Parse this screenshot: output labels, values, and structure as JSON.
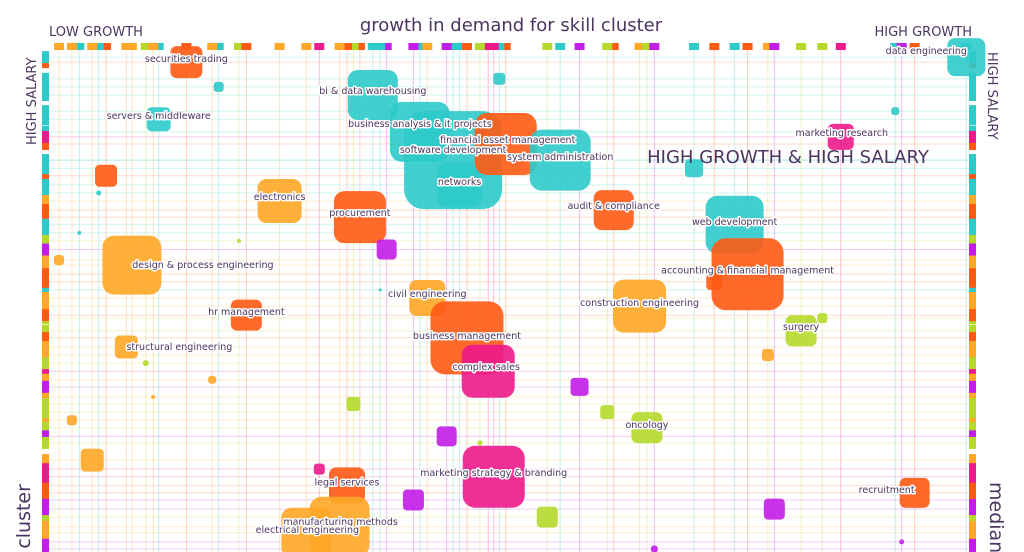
{
  "chart_data": {
    "type": "scatter",
    "title": "growth in demand for skill cluster",
    "x_axis": {
      "left_label": "LOW GROWTH",
      "right_label": "HIGH GROWTH",
      "range": [
        0,
        100
      ]
    },
    "y_axis": {
      "top_label_left": "HIGH SALARY",
      "top_label_right": "HIGH SALARY",
      "bottom_left_partial": "l cluster",
      "bottom_right_partial": "median",
      "range": [
        0,
        100
      ]
    },
    "quadrant_label": "HIGH GROWTH & HIGH SALARY",
    "grid": true,
    "colors": {
      "teal": "#2ecaca",
      "red": "#ff5a14",
      "amber": "#ffa726",
      "magenta": "#ec1a8c",
      "purple": "#c21de8",
      "lime": "#b5d92b",
      "text": "#4b3560"
    },
    "points": [
      {
        "label": "securities trading",
        "x": 15.1,
        "y": 97.0,
        "size": 32,
        "color": "red"
      },
      {
        "label": "",
        "x": 18.6,
        "y": 92.1,
        "size": 10,
        "color": "teal"
      },
      {
        "label": "servers & middleware",
        "x": 12.1,
        "y": 85.7,
        "size": 24,
        "color": "teal"
      },
      {
        "label": "",
        "x": 6.4,
        "y": 74.5,
        "size": 22,
        "color": "red"
      },
      {
        "label": "",
        "x": 5.6,
        "y": 71.1,
        "size": 5,
        "color": "teal"
      },
      {
        "label": "",
        "x": 3.5,
        "y": 63.2,
        "size": 4,
        "color": "teal"
      },
      {
        "label": "electronics",
        "x": 25.2,
        "y": 69.5,
        "size": 44,
        "color": "amber"
      },
      {
        "label": "",
        "x": 20.8,
        "y": 61.6,
        "size": 4,
        "color": "lime"
      },
      {
        "label": "",
        "x": 1.3,
        "y": 57.8,
        "size": 10,
        "color": "amber"
      },
      {
        "label": "design & process engineering",
        "x": 9.2,
        "y": 56.8,
        "size": 59,
        "color": "amber"
      },
      {
        "label": "bi & data warehousing",
        "x": 35.3,
        "y": 90.5,
        "size": 50,
        "color": "teal"
      },
      {
        "label": "business analysis & it projects",
        "x": 40.4,
        "y": 83.2,
        "size": 60,
        "color": "teal"
      },
      {
        "label": "software development",
        "x": 44.0,
        "y": 77.6,
        "size": 98,
        "color": "teal"
      },
      {
        "label": "networks",
        "x": 44.7,
        "y": 72.7,
        "size": 45,
        "color": "teal"
      },
      {
        "label": "financial asset management",
        "x": 49.7,
        "y": 80.8,
        "size": 62,
        "color": "red"
      },
      {
        "label": "system administration",
        "x": 55.6,
        "y": 77.6,
        "size": 61,
        "color": "teal"
      },
      {
        "label": "",
        "x": 49.0,
        "y": 93.7,
        "size": 12,
        "color": "teal"
      },
      {
        "label": "procurement",
        "x": 33.9,
        "y": 66.3,
        "size": 52,
        "color": "red"
      },
      {
        "label": "",
        "x": 36.8,
        "y": 59.9,
        "size": 20,
        "color": "purple"
      },
      {
        "label": "",
        "x": 36.1,
        "y": 51.9,
        "size": 3,
        "color": "teal"
      },
      {
        "label": "audit & compliance",
        "x": 61.4,
        "y": 67.7,
        "size": 40,
        "color": "red"
      },
      {
        "label": "",
        "x": 70.1,
        "y": 76.0,
        "size": 18,
        "color": "teal"
      },
      {
        "label": "marketing research",
        "x": 86.0,
        "y": 82.2,
        "size": 26,
        "color": "magenta"
      },
      {
        "label": "",
        "x": 91.9,
        "y": 87.3,
        "size": 8,
        "color": "teal"
      },
      {
        "label": "data engineering",
        "x": 99.6,
        "y": 98.0,
        "size": 38,
        "color": "teal"
      },
      {
        "label": "web development",
        "x": 74.5,
        "y": 64.8,
        "size": 58,
        "color": "teal"
      },
      {
        "label": "accounting & financial management",
        "x": 75.9,
        "y": 55.0,
        "size": 72,
        "color": "red"
      },
      {
        "label": "",
        "x": 72.3,
        "y": 53.5,
        "size": 16,
        "color": "red"
      },
      {
        "label": "construction engineering",
        "x": 64.2,
        "y": 48.7,
        "size": 53,
        "color": "amber"
      },
      {
        "label": "surgery",
        "x": 81.7,
        "y": 43.8,
        "size": 31,
        "color": "lime"
      },
      {
        "label": "",
        "x": 84.0,
        "y": 46.3,
        "size": 10,
        "color": "lime"
      },
      {
        "label": "",
        "x": 78.1,
        "y": 39.0,
        "size": 12,
        "color": "amber"
      },
      {
        "label": "civil engineering",
        "x": 41.2,
        "y": 50.3,
        "size": 36,
        "color": "amber"
      },
      {
        "label": "business management",
        "x": 45.5,
        "y": 42.4,
        "size": 73,
        "color": "red"
      },
      {
        "label": "complex sales",
        "x": 47.8,
        "y": 35.8,
        "size": 53,
        "color": "magenta"
      },
      {
        "label": "hr management",
        "x": 21.6,
        "y": 46.9,
        "size": 31,
        "color": "red"
      },
      {
        "label": "structural engineering",
        "x": 8.6,
        "y": 40.6,
        "size": 23,
        "color": "amber"
      },
      {
        "label": "",
        "x": 10.7,
        "y": 37.4,
        "size": 6,
        "color": "lime"
      },
      {
        "label": "",
        "x": 17.9,
        "y": 34.1,
        "size": 8,
        "color": "amber"
      },
      {
        "label": "",
        "x": 11.5,
        "y": 30.7,
        "size": 4,
        "color": "amber"
      },
      {
        "label": "",
        "x": 2.7,
        "y": 26.1,
        "size": 10,
        "color": "amber"
      },
      {
        "label": "",
        "x": 33.2,
        "y": 29.3,
        "size": 14,
        "color": "lime"
      },
      {
        "label": "",
        "x": 57.7,
        "y": 32.7,
        "size": 18,
        "color": "purple"
      },
      {
        "label": "",
        "x": 60.7,
        "y": 27.7,
        "size": 14,
        "color": "lime"
      },
      {
        "label": "oncology",
        "x": 65.0,
        "y": 24.6,
        "size": 31,
        "color": "lime"
      },
      {
        "label": "",
        "x": 43.3,
        "y": 22.9,
        "size": 20,
        "color": "purple"
      },
      {
        "label": "",
        "x": 4.9,
        "y": 18.2,
        "size": 23,
        "color": "amber"
      },
      {
        "label": "",
        "x": 46.9,
        "y": 21.6,
        "size": 5,
        "color": "lime"
      },
      {
        "label": "",
        "x": 29.5,
        "y": 16.4,
        "size": 11,
        "color": "magenta"
      },
      {
        "label": "legal services",
        "x": 32.5,
        "y": 13.2,
        "size": 36,
        "color": "red"
      },
      {
        "label": "marketing strategy & branding",
        "x": 48.4,
        "y": 14.9,
        "size": 62,
        "color": "magenta"
      },
      {
        "label": "",
        "x": 39.7,
        "y": 10.3,
        "size": 21,
        "color": "purple"
      },
      {
        "label": "",
        "x": 54.2,
        "y": 6.9,
        "size": 21,
        "color": "lime"
      },
      {
        "label": "",
        "x": 78.8,
        "y": 8.5,
        "size": 21,
        "color": "purple"
      },
      {
        "label": "recruitment",
        "x": 94.0,
        "y": 11.7,
        "size": 30,
        "color": "red"
      },
      {
        "label": "",
        "x": 92.6,
        "y": 2.0,
        "size": 5,
        "color": "purple"
      },
      {
        "label": "",
        "x": 65.8,
        "y": 0.6,
        "size": 7,
        "color": "purple"
      },
      {
        "label": "manufacturing methods",
        "x": 31.7,
        "y": 5.0,
        "size": 60,
        "color": "amber"
      },
      {
        "label": "electrical engineering",
        "x": 28.1,
        "y": 3.8,
        "size": 50,
        "color": "amber"
      }
    ]
  }
}
